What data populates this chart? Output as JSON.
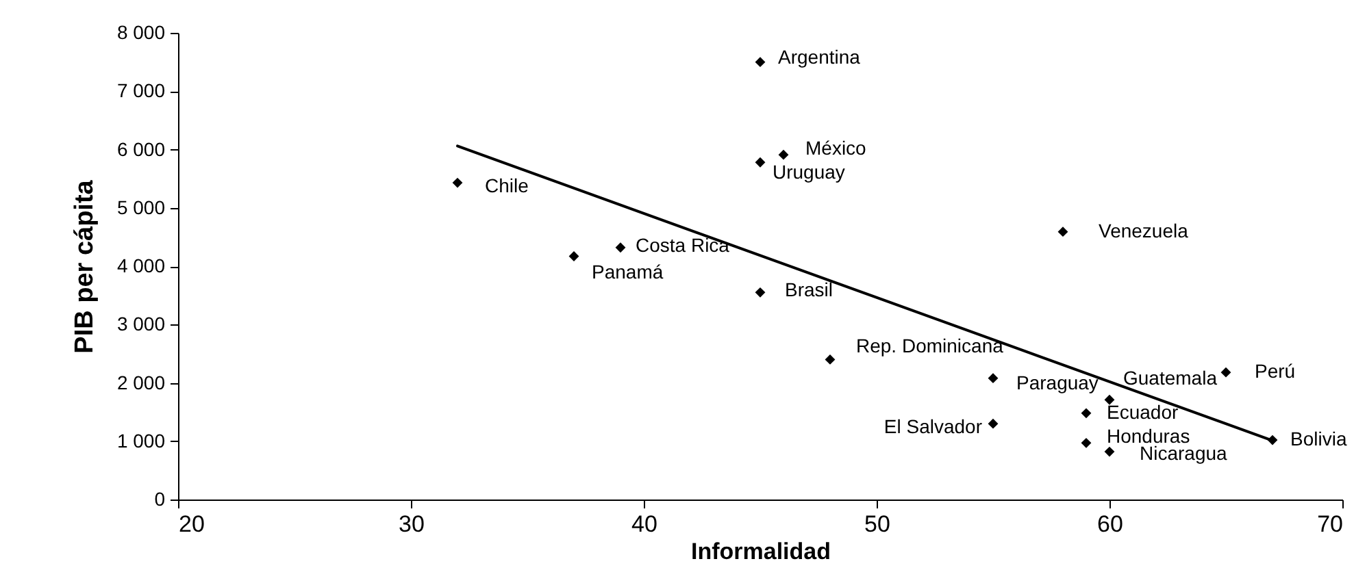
{
  "chart_data": {
    "type": "scatter",
    "xlabel": "Informalidad",
    "ylabel": "PIB per cápita",
    "marker": "diamond",
    "xlim": [
      20,
      70
    ],
    "xticks": [
      20,
      30,
      40,
      50,
      60,
      70
    ],
    "ylim": [
      0,
      8000
    ],
    "yticks": [
      {
        "value": 0,
        "label": "0"
      },
      {
        "value": 1000,
        "label": "1 000"
      },
      {
        "value": 2000,
        "label": "2 000"
      },
      {
        "value": 3000,
        "label": "3 000"
      },
      {
        "value": 4000,
        "label": "4 000"
      },
      {
        "value": 5000,
        "label": "5 000"
      },
      {
        "value": 6000,
        "label": "6 000"
      },
      {
        "value": 7000,
        "label": "7 000"
      },
      {
        "value": 8000,
        "label": "8 000"
      }
    ],
    "series": [
      {
        "color": "#000000",
        "x": [
          32,
          37,
          39,
          45,
          46,
          45,
          58,
          45,
          48,
          55,
          65,
          60,
          59,
          55,
          59,
          60,
          67
        ],
        "values": [
          5430,
          4170,
          4320,
          7500,
          5910,
          5780,
          4590,
          3550,
          2400,
          2080,
          2180,
          1710,
          1480,
          1300,
          970,
          820,
          1020
        ]
      },
      {
        "type": "line",
        "marker": "none",
        "color": "#000000",
        "x": [
          32,
          67
        ],
        "values": [
          6060,
          1010
        ]
      }
    ],
    "annotations": [
      {
        "text": "Chile",
        "x": 32,
        "y": 5430
      },
      {
        "text": "Panamá",
        "x": 37,
        "y": 4170
      },
      {
        "text": "Costa Rica",
        "x": 39,
        "y": 4320
      },
      {
        "text": "Argentina",
        "x": 45,
        "y": 7500
      },
      {
        "text": "México",
        "x": 46,
        "y": 5910
      },
      {
        "text": "Uruguay",
        "x": 45,
        "y": 5780
      },
      {
        "text": "Venezuela",
        "x": 58,
        "y": 4590
      },
      {
        "text": "Brasil",
        "x": 45,
        "y": 3550
      },
      {
        "text": "Rep. Dominicana",
        "x": 48,
        "y": 2400
      },
      {
        "text": "Paraguay",
        "x": 55,
        "y": 2080
      },
      {
        "text": "Perú",
        "x": 65,
        "y": 2180
      },
      {
        "text": "Guatemala",
        "x": 60,
        "y": 1710
      },
      {
        "text": "Ecuador",
        "x": 59,
        "y": 1480
      },
      {
        "text": "El Salvador",
        "x": 55,
        "y": 1300
      },
      {
        "text": "Honduras",
        "x": 59,
        "y": 970
      },
      {
        "text": "Nicaragua",
        "x": 60,
        "y": 820
      },
      {
        "text": "Bolivia",
        "x": 67,
        "y": 1020
      }
    ]
  }
}
